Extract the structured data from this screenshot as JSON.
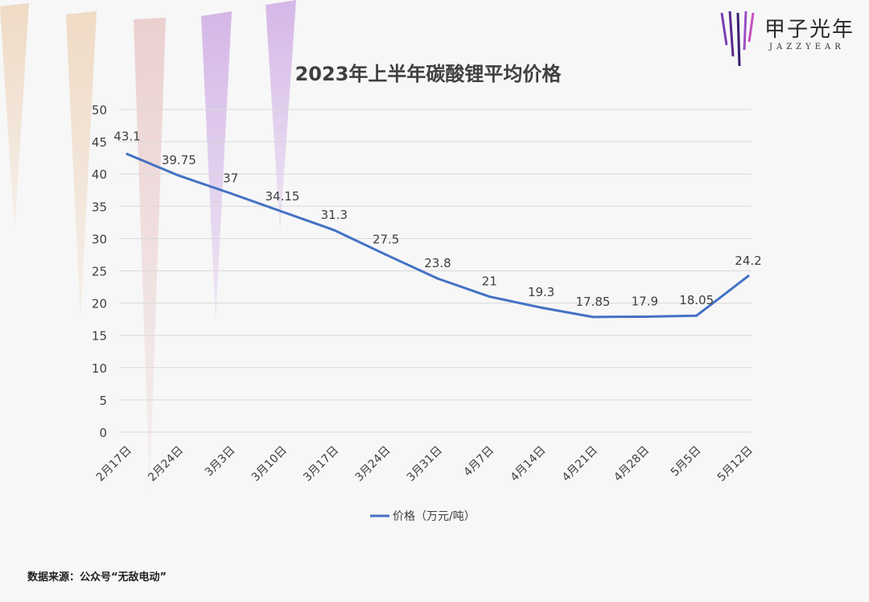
{
  "brand": {
    "name": "甲子光年",
    "sub": "JAZZYEAR"
  },
  "source_note": "数据来源：公众号“无敌电动”",
  "colors": {
    "line": "#4472c4",
    "grid": "#d9d9d9",
    "text": "#404040",
    "title": "#404040"
  },
  "chart_data": {
    "type": "line",
    "title": "2023年上半年碳酸锂平均价格",
    "xlabel": "",
    "ylabel": "",
    "categories": [
      "2月17日",
      "2月24日",
      "3月3日",
      "3月10日",
      "3月17日",
      "3月24日",
      "3月31日",
      "4月7日",
      "4月14日",
      "4月21日",
      "4月28日",
      "5月5日",
      "5月12日"
    ],
    "series": [
      {
        "name": "价格（万元/吨）",
        "values": [
          43.1,
          39.75,
          37,
          34.15,
          31.3,
          27.5,
          23.8,
          21,
          19.3,
          17.85,
          17.9,
          18.05,
          24.2
        ]
      }
    ],
    "data_labels": [
      "43.1",
      "39.75",
      "37",
      "34.15",
      "31.3",
      "27.5",
      "23.8",
      "21",
      "19.3",
      "17.85",
      "17.9",
      "18.05",
      "24.2"
    ],
    "ylim": [
      0,
      50
    ],
    "yticks": [
      "0",
      "5",
      "10",
      "15",
      "20",
      "25",
      "30",
      "35",
      "40",
      "45",
      "50"
    ],
    "grid": true,
    "legend": "bottom"
  }
}
